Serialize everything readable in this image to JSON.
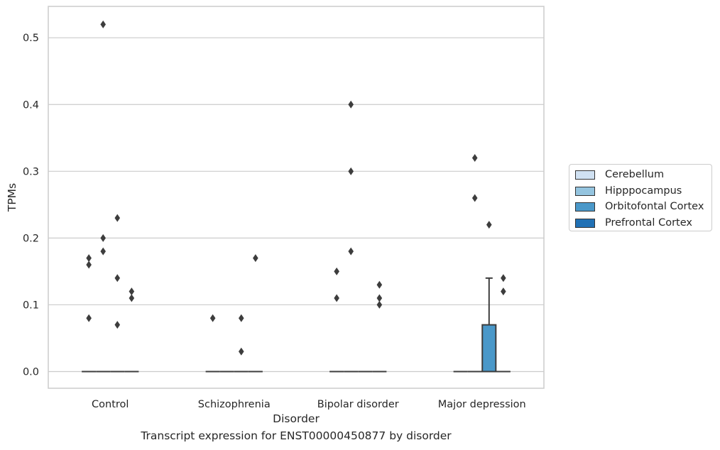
{
  "caption": "Transcript expression for ENST00000450877 by disorder",
  "chart_data": {
    "type": "box",
    "xlabel": "Disorder",
    "ylabel": "TPMs",
    "ylim": [
      -0.025,
      0.547
    ],
    "yticks": [
      0.0,
      0.1,
      0.2,
      0.3,
      0.4,
      0.5
    ],
    "ytick_labels": [
      "0.0",
      "0.1",
      "0.2",
      "0.3",
      "0.4",
      "0.5"
    ],
    "grid": "horizontal",
    "legend_position": "right",
    "categories": [
      "Control",
      "Schizophrenia",
      "Bipolar disorder",
      "Major depression"
    ],
    "series": [
      {
        "name": "Cerebellum",
        "color": "#d0e1f2"
      },
      {
        "name": "Hipppocampus",
        "color": "#94c4df"
      },
      {
        "name": "Orbitofontal Cortex",
        "color": "#4a98c9"
      },
      {
        "name": "Prefrontal Cortex",
        "color": "#2171b5"
      }
    ],
    "boxes": [
      {
        "category": "Control",
        "series": "Cerebellum",
        "q1": 0,
        "median": 0,
        "q3": 0,
        "whislo": 0,
        "whishi": 0,
        "fliers": [
          0.16,
          0.17,
          0.08
        ]
      },
      {
        "category": "Control",
        "series": "Hipppocampus",
        "q1": 0,
        "median": 0,
        "q3": 0,
        "whislo": 0,
        "whishi": 0,
        "fliers": [
          0.52,
          0.2,
          0.18
        ]
      },
      {
        "category": "Control",
        "series": "Orbitofontal Cortex",
        "q1": 0,
        "median": 0,
        "q3": 0,
        "whislo": 0,
        "whishi": 0,
        "fliers": [
          0.23,
          0.14,
          0.07
        ]
      },
      {
        "category": "Control",
        "series": "Prefrontal Cortex",
        "q1": 0,
        "median": 0,
        "q3": 0,
        "whislo": 0,
        "whishi": 0,
        "fliers": [
          0.12,
          0.11
        ]
      },
      {
        "category": "Schizophrenia",
        "series": "Cerebellum",
        "q1": 0,
        "median": 0,
        "q3": 0,
        "whislo": 0,
        "whishi": 0,
        "fliers": [
          0.08
        ]
      },
      {
        "category": "Schizophrenia",
        "series": "Hipppocampus",
        "q1": 0,
        "median": 0,
        "q3": 0,
        "whislo": 0,
        "whishi": 0,
        "fliers": []
      },
      {
        "category": "Schizophrenia",
        "series": "Orbitofontal Cortex",
        "q1": 0,
        "median": 0,
        "q3": 0,
        "whislo": 0,
        "whishi": 0,
        "fliers": [
          0.08,
          0.03
        ]
      },
      {
        "category": "Schizophrenia",
        "series": "Prefrontal Cortex",
        "q1": 0,
        "median": 0,
        "q3": 0,
        "whislo": 0,
        "whishi": 0,
        "fliers": [
          0.17
        ]
      },
      {
        "category": "Bipolar disorder",
        "series": "Cerebellum",
        "q1": 0,
        "median": 0,
        "q3": 0,
        "whislo": 0,
        "whishi": 0,
        "fliers": [
          0.15,
          0.11
        ]
      },
      {
        "category": "Bipolar disorder",
        "series": "Hipppocampus",
        "q1": 0,
        "median": 0,
        "q3": 0,
        "whislo": 0,
        "whishi": 0,
        "fliers": [
          0.4,
          0.3,
          0.18
        ]
      },
      {
        "category": "Bipolar disorder",
        "series": "Orbitofontal Cortex",
        "q1": 0,
        "median": 0,
        "q3": 0,
        "whislo": 0,
        "whishi": 0,
        "fliers": []
      },
      {
        "category": "Bipolar disorder",
        "series": "Prefrontal Cortex",
        "q1": 0,
        "median": 0,
        "q3": 0,
        "whislo": 0,
        "whishi": 0,
        "fliers": [
          0.13,
          0.11,
          0.1
        ]
      },
      {
        "category": "Major depression",
        "series": "Cerebellum",
        "q1": 0,
        "median": 0,
        "q3": 0,
        "whislo": 0,
        "whishi": 0,
        "fliers": []
      },
      {
        "category": "Major depression",
        "series": "Hipppocampus",
        "q1": 0,
        "median": 0,
        "q3": 0,
        "whislo": 0,
        "whishi": 0,
        "fliers": [
          0.32,
          0.26
        ]
      },
      {
        "category": "Major depression",
        "series": "Orbitofontal Cortex",
        "q1": 0,
        "median": 0,
        "q3": 0.07,
        "whislo": 0,
        "whishi": 0.14,
        "fliers": [
          0.22
        ]
      },
      {
        "category": "Major depression",
        "series": "Prefrontal Cortex",
        "q1": 0,
        "median": 0,
        "q3": 0,
        "whislo": 0,
        "whishi": 0,
        "fliers": [
          0.14,
          0.12
        ]
      }
    ]
  }
}
